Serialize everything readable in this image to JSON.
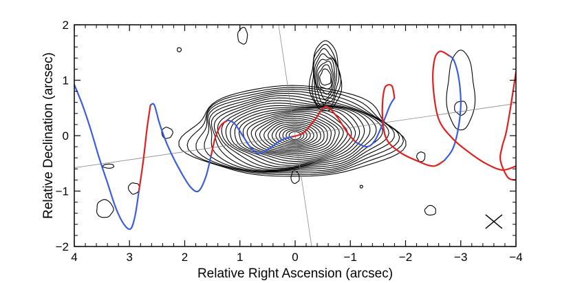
{
  "chart_data": {
    "type": "line",
    "xlabel": "Relative Right Ascension (arcsec)",
    "ylabel": "Relative Declination (arcsec)",
    "xlim": [
      4,
      -4
    ],
    "ylim": [
      -2,
      2
    ],
    "x_axis_reversed": true,
    "xticks": [
      4,
      3,
      2,
      1,
      0,
      -1,
      -2,
      -3,
      -4
    ],
    "xtick_labels": [
      "4",
      "3",
      "2",
      "1",
      "0",
      "−1",
      "−2",
      "−3",
      "−4"
    ],
    "yticks": [
      -2,
      -1,
      0,
      1,
      2
    ],
    "ytick_labels": [
      "−2",
      "−1",
      "0",
      "1",
      "2"
    ],
    "grid": false,
    "colors": {
      "blue_curve": "#3a5de0",
      "red_curve": "#e0201e",
      "contours": "#000000",
      "reference_lines": "#888888"
    },
    "reference_lines": [
      {
        "points": [
          [
            4.0,
            -0.58
          ],
          [
            -4.0,
            0.58
          ]
        ]
      },
      {
        "points": [
          [
            0.3,
            2.0
          ],
          [
            -0.3,
            -2.0
          ]
        ]
      }
    ],
    "series": [
      {
        "segments": [
          {
            "color": "blue",
            "points": [
              [
                4.0,
                0.92
              ],
              [
                3.85,
                0.55
              ],
              [
                3.7,
                0.1
              ],
              [
                3.55,
                -0.4
              ],
              [
                3.4,
                -0.85
              ],
              [
                3.25,
                -1.3
              ],
              [
                3.1,
                -1.6
              ],
              [
                2.98,
                -1.68
              ],
              [
                2.9,
                -1.45
              ],
              [
                2.83,
                -1.0
              ]
            ]
          },
          {
            "color": "red",
            "points": [
              [
                2.83,
                -1.0
              ],
              [
                2.75,
                -0.45
              ],
              [
                2.68,
                0.15
              ],
              [
                2.62,
                0.55
              ]
            ]
          },
          {
            "color": "blue",
            "points": [
              [
                2.62,
                0.55
              ],
              [
                2.55,
                0.55
              ],
              [
                2.45,
                0.2
              ],
              [
                2.3,
                -0.2
              ],
              [
                2.1,
                -0.6
              ],
              [
                1.9,
                -0.92
              ],
              [
                1.75,
                -1.0
              ],
              [
                1.62,
                -0.75
              ],
              [
                1.52,
                -0.35
              ]
            ]
          },
          {
            "color": "red",
            "points": [
              [
                1.52,
                -0.35
              ],
              [
                1.45,
                -0.05
              ],
              [
                1.35,
                0.18
              ],
              [
                1.22,
                0.28
              ]
            ]
          },
          {
            "color": "blue",
            "points": [
              [
                1.22,
                0.28
              ],
              [
                1.1,
                0.22
              ],
              [
                0.95,
                0.0
              ],
              [
                0.8,
                -0.22
              ],
              [
                0.65,
                -0.32
              ],
              [
                0.45,
                -0.22
              ],
              [
                0.25,
                -0.08
              ],
              [
                0.05,
                -0.02
              ]
            ]
          },
          {
            "color": "red",
            "points": [
              [
                0.05,
                -0.02
              ],
              [
                -0.15,
                0.05
              ],
              [
                -0.35,
                0.28
              ],
              [
                -0.55,
                0.52
              ],
              [
                -0.75,
                0.35
              ],
              [
                -0.95,
                0.05
              ],
              [
                -1.1,
                -0.12
              ]
            ]
          },
          {
            "color": "blue",
            "points": [
              [
                -1.1,
                -0.12
              ],
              [
                -1.3,
                -0.2
              ],
              [
                -1.45,
                -0.08
              ],
              [
                -1.6,
                0.25
              ],
              [
                -1.72,
                0.55
              ],
              [
                -1.8,
                0.68
              ]
            ]
          },
          {
            "color": "red",
            "points": [
              [
                -1.8,
                0.68
              ],
              [
                -1.75,
                0.9
              ],
              [
                -1.62,
                0.85
              ],
              [
                -1.58,
                0.4
              ],
              [
                -1.65,
                -0.05
              ],
              [
                -1.9,
                -0.3
              ],
              [
                -2.2,
                -0.45
              ],
              [
                -2.5,
                -0.55
              ],
              [
                -2.7,
                -0.45
              ]
            ]
          },
          {
            "color": "blue",
            "points": [
              [
                -2.7,
                -0.45
              ],
              [
                -2.85,
                -0.25
              ],
              [
                -2.95,
                0.1
              ],
              [
                -3.0,
                0.55
              ],
              [
                -2.97,
                1.0
              ],
              [
                -2.88,
                1.35
              ],
              [
                -2.78,
                1.45
              ]
            ]
          },
          {
            "color": "red",
            "points": [
              [
                -2.78,
                1.45
              ],
              [
                -2.62,
                1.52
              ],
              [
                -2.52,
                1.35
              ],
              [
                -2.5,
                0.9
              ],
              [
                -2.6,
                0.3
              ],
              [
                -2.85,
                -0.05
              ],
              [
                -3.15,
                -0.3
              ],
              [
                -3.45,
                -0.5
              ],
              [
                -3.75,
                -0.62
              ],
              [
                -4.0,
                -0.55
              ]
            ]
          }
        ]
      },
      {
        "segments": [
          {
            "color": "red",
            "points": [
              [
                -4.0,
                1.15
              ],
              [
                -3.9,
                0.5
              ],
              [
                -3.82,
                0.05
              ],
              [
                -3.75,
                -0.2
              ],
              [
                -3.72,
                -0.45
              ],
              [
                -3.85,
                -0.75
              ],
              [
                -4.0,
                -0.8
              ]
            ]
          }
        ]
      }
    ],
    "annotations": [
      {
        "kind": "beam-cross",
        "center": [
          -3.6,
          -1.55
        ]
      }
    ]
  }
}
